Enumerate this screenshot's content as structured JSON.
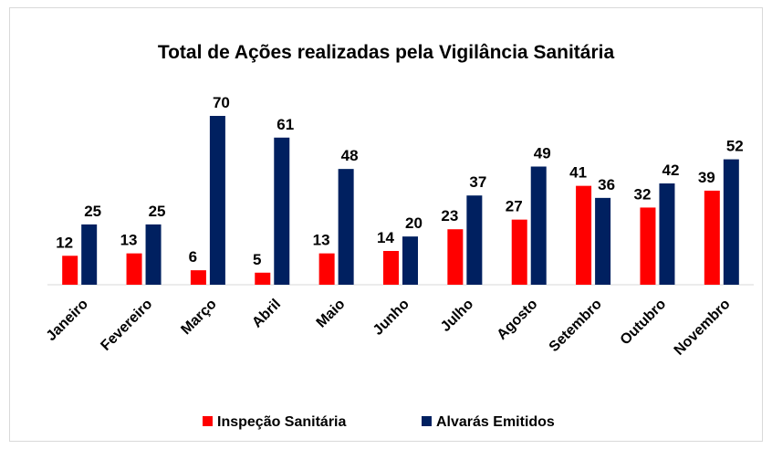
{
  "chart_data": {
    "type": "bar",
    "title": "Total de Ações realizadas pela Vigilância Sanitária",
    "categories": [
      "Janeiro",
      "Fevereiro",
      "Março",
      "Abril",
      "Maio",
      "Junho",
      "Julho",
      "Agosto",
      "Setembro",
      "Outubro",
      "Novembro"
    ],
    "series": [
      {
        "name": "Inspeção Sanitária",
        "color": "#ff0000",
        "values": [
          12,
          13,
          6,
          5,
          13,
          14,
          23,
          27,
          41,
          32,
          39
        ]
      },
      {
        "name": "Alvarás Emitidos",
        "color": "#002060",
        "values": [
          25,
          25,
          70,
          61,
          48,
          20,
          37,
          49,
          36,
          42,
          52
        ]
      }
    ],
    "ylim": [
      0,
      70
    ],
    "legend": "bottom"
  }
}
